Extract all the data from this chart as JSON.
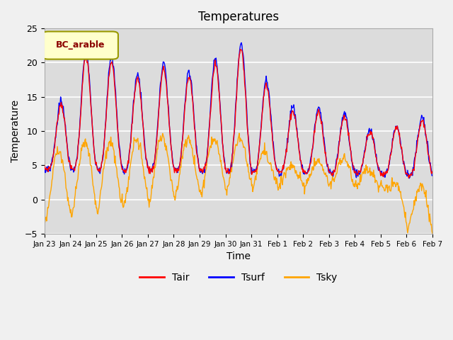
{
  "title": "Temperatures",
  "xlabel": "Time",
  "ylabel": "Temperature",
  "legend_label": "BC_arable",
  "line_labels": [
    "Tair",
    "Tsurf",
    "Tsky"
  ],
  "line_colors": [
    "red",
    "blue",
    "orange"
  ],
  "ylim": [
    -5,
    25
  ],
  "yticks": [
    -5,
    0,
    5,
    10,
    15,
    20,
    25
  ],
  "xtick_labels": [
    "Jan 23",
    "Jan 24",
    "Jan 25",
    "Jan 26",
    "Jan 27",
    "Jan 28",
    "Jan 29",
    "Jan 30",
    "Jan 31",
    "Feb 1",
    "Feb 2",
    "Feb 3",
    "Feb 4",
    "Feb 5",
    "Feb 6",
    "Feb 7"
  ],
  "bg_color": "#dcdcdc",
  "fig_bg": "#f0f0f0",
  "legend_box_color": "#ffffcc",
  "legend_box_edge": "#999900",
  "legend_text_color": "#8B0000",
  "n_points": 720
}
